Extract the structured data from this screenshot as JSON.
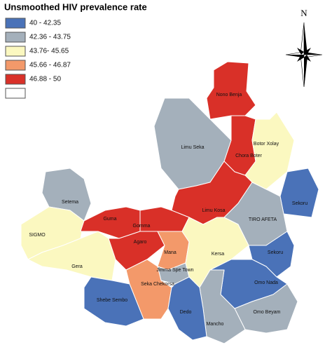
{
  "title": "Unsmoothed HIV prevalence rate",
  "north_label": "N",
  "legend": [
    {
      "label": "40 - 42.35",
      "color": "#4a72b8"
    },
    {
      "label": "42.36 - 43.75",
      "color": "#a4b0bb"
    },
    {
      "label": "43.76- 45.65",
      "color": "#fbf8c0"
    },
    {
      "label": "45.66 - 46.87",
      "color": "#f3996a"
    },
    {
      "label": "46.88 - 50",
      "color": "#d93028"
    }
  ],
  "regions": [
    {
      "name": "Nono Benja",
      "class": 4
    },
    {
      "name": "Chora Boter",
      "class": 4
    },
    {
      "name": "Limu Seka",
      "class": 1
    },
    {
      "name": "Botor Xolay",
      "class": 2
    },
    {
      "name": "Sekoru",
      "class": 0
    },
    {
      "name": "Limu Kosa",
      "class": 4
    },
    {
      "name": "TIRO AFETA",
      "class": 1
    },
    {
      "name": "Setema",
      "class": 1
    },
    {
      "name": "SIGMO",
      "class": 2
    },
    {
      "name": "Gera",
      "class": 2
    },
    {
      "name": "Guma",
      "class": 4
    },
    {
      "name": "Gomma",
      "class": 4
    },
    {
      "name": "Agaro",
      "class": 4
    },
    {
      "name": "Mana",
      "class": 3
    },
    {
      "name": "Jimma Spe Town",
      "class": 1
    },
    {
      "name": "Seka Chekorsa",
      "class": 3
    },
    {
      "name": "Kersa",
      "class": 2
    },
    {
      "name": "Sekoru",
      "class": 0
    },
    {
      "name": "Omo Nada",
      "class": 0
    },
    {
      "name": "Omo Beyam",
      "class": 1
    },
    {
      "name": "Mancho",
      "class": 1
    },
    {
      "name": "Dedo",
      "class": 0
    },
    {
      "name": "Shebe Sembo",
      "class": 0
    }
  ]
}
